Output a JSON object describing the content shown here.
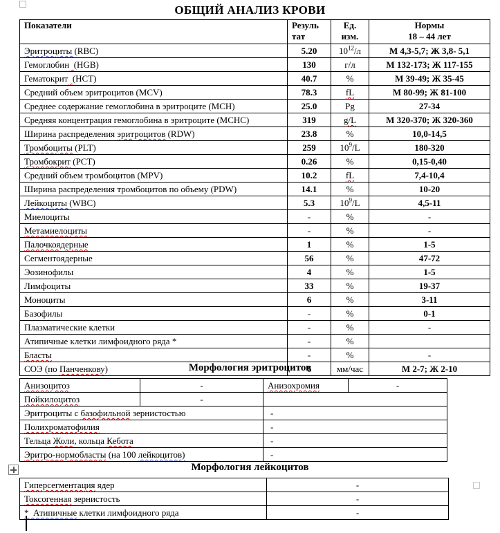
{
  "page": {
    "title": "ОБЩИЙ АНАЛИЗ КРОВИ",
    "section2_title": "Морфология эритроцитов",
    "section3_title": "Морфология лейкоцитов"
  },
  "colors": {
    "spellcheck_red": "#d40000",
    "grammar_blue": "#3b55c4",
    "text": "#000000",
    "border": "#000000"
  },
  "icons": {
    "top_left": "formatting-mark-square",
    "table_handle": "table-move-handle",
    "caret": "text-cursor",
    "bottom_right": "end-of-document-square"
  },
  "main_table": {
    "headers": {
      "indicators": "Показатели",
      "result_line1": "Резуль",
      "result_line2": "тат",
      "unit_line1": "Ед.",
      "unit_line2": "изм.",
      "norms_line1": "Нормы",
      "norms_line2": "18 – 44 лет"
    },
    "rows": [
      {
        "name": [
          {
            "t": "Эритроциты ",
            "u": "blue"
          },
          {
            "t": " (RBC)"
          }
        ],
        "result": "5.20",
        "unit": [
          {
            "t": "10"
          },
          {
            "t": "12",
            "sup": true
          },
          {
            "t": "/л"
          }
        ],
        "norm": "М 4,3-5,7; Ж 3,8- 5,1"
      },
      {
        "name": [
          {
            "t": "Гемоглобин"
          },
          {
            "t": "  ",
            "u": "red"
          },
          {
            "t": "(HGB)"
          }
        ],
        "result": "130",
        "unit": "г/л",
        "norm": "М 132-173; Ж 117-155"
      },
      {
        "name": [
          {
            "t": "Гематокрит"
          },
          {
            "t": "  ",
            "u": "red"
          },
          {
            "t": "(HCT)"
          }
        ],
        "result": "40.7",
        "unit": "%",
        "norm": "М 39-49; Ж 35-45"
      },
      {
        "name": "Средний объем эритроцитов (MCV)",
        "result": "78.3",
        "unit": [
          {
            "t": "fL",
            "u": "red"
          }
        ],
        "norm": "М 80-99; Ж 81-100"
      },
      {
        "name": "Среднее содержание гемоглобина в эритроците (MCH)",
        "result": "25.0",
        "unit": "Pg",
        "norm": "27-34"
      },
      {
        "name": "Средняя концентрация гемоглобина в эритроците (MCHC)",
        "result": "319",
        "unit": [
          {
            "t": "g/L",
            "u": "red"
          }
        ],
        "norm": "М 320-370; Ж 320-360"
      },
      {
        "name": [
          {
            "t": "Ширина распределения "
          },
          {
            "t": "эритроцитов",
            "u": "blue"
          },
          {
            "t": " (RDW)"
          }
        ],
        "result": "23.8",
        "unit": "%",
        "norm": "10,0-14,5"
      },
      {
        "name": [
          {
            "t": "Тромбоциты",
            "u": "red"
          },
          {
            "t": "  (PLT)"
          }
        ],
        "result": "259",
        "unit": [
          {
            "t": "10"
          },
          {
            "t": "9",
            "sup": true
          },
          {
            "t": "/L"
          }
        ],
        "norm": "180-320"
      },
      {
        "name": [
          {
            "t": "Тромбокрит",
            "u": "red"
          },
          {
            "t": "  (PCT)"
          }
        ],
        "result": "0.26",
        "unit": "%",
        "norm": "0,15-0,40"
      },
      {
        "name": "Средний объем тромбоцитов (MPV)",
        "result": "10.2",
        "unit": [
          {
            "t": "fL",
            "u": "red"
          }
        ],
        "norm": "7,4-10,4"
      },
      {
        "name": "Ширина распределения тромбоцитов по объему (PDW)",
        "result": "14.1",
        "unit": "%",
        "norm": "10-20"
      },
      {
        "name": [
          {
            "t": "Лейкоциты ",
            "u": "blue"
          },
          {
            "t": " (WBC)"
          }
        ],
        "result": "5.3",
        "unit": [
          {
            "t": "10"
          },
          {
            "t": "9",
            "sup": true
          },
          {
            "t": "/L"
          }
        ],
        "norm": "4,5-11"
      },
      {
        "name": "Миелоциты",
        "result": "-",
        "unit": "%",
        "norm": "-"
      },
      {
        "name": [
          {
            "t": "Метамиелоциты",
            "u": "red"
          }
        ],
        "result": "-",
        "unit": "%",
        "norm": "-"
      },
      {
        "name": [
          {
            "t": "Палочкоядерные",
            "u": "red"
          }
        ],
        "result": "1",
        "unit": "%",
        "norm": "1-5"
      },
      {
        "name": "Сегментоядерные",
        "result": "56",
        "unit": "%",
        "norm": "47-72"
      },
      {
        "name": "Эозинофилы",
        "result": "4",
        "unit": "%",
        "norm": "1-5"
      },
      {
        "name": "Лимфоциты",
        "result": "33",
        "unit": "%",
        "norm": "19-37"
      },
      {
        "name": "Моноциты",
        "result": "6",
        "unit": "%",
        "norm": "3-11"
      },
      {
        "name": "Базофилы",
        "result": "-",
        "unit": "%",
        "norm": "0-1"
      },
      {
        "name": "Плазматические клетки",
        "result": "-",
        "unit": "%",
        "norm": "-"
      },
      {
        "name": "Атипичные клетки лимфоидного ряда *",
        "result": "-",
        "unit": "%",
        "norm": ""
      },
      {
        "name": [
          {
            "t": "Бласты",
            "u": "red"
          }
        ],
        "result": "-",
        "unit": "%",
        "norm": "-"
      },
      {
        "name": [
          {
            "t": "СОЭ (по "
          },
          {
            "t": "Панченкову",
            "u": "red"
          },
          {
            "t": ")"
          }
        ],
        "result": "6",
        "unit": "мм/час",
        "norm": "М 2-7; Ж 2-10"
      }
    ]
  },
  "morphology_rbc": {
    "rows": [
      {
        "layout": "four",
        "cells": [
          [
            {
              "t": "Анизоцитоз",
              "u": "red"
            }
          ],
          "-",
          [
            {
              "t": "Анизохромия",
              "u": "red"
            }
          ],
          "-"
        ]
      },
      {
        "layout": "two",
        "cells": [
          [
            {
              "t": "Пойкилоцитоз",
              "u": "red"
            }
          ],
          "-",
          ""
        ]
      },
      {
        "layout": "merged",
        "cells": [
          [
            {
              "t": "Эритроциты с "
            },
            {
              "t": "базофильной",
              "u": "red"
            },
            {
              "t": " зернистостью"
            }
          ],
          "-"
        ]
      },
      {
        "layout": "merged",
        "cells": [
          [
            {
              "t": "Полихроматофилия",
              "u": "red"
            }
          ],
          "-"
        ]
      },
      {
        "layout": "merged",
        "cells": [
          [
            {
              "t": "Тельца "
            },
            {
              "t": "Жоли",
              "u": "red"
            },
            {
              "t": ", кольца "
            },
            {
              "t": "Кебота",
              "u": "red"
            }
          ],
          "-"
        ]
      },
      {
        "layout": "merged",
        "cells": [
          [
            {
              "t": "Эритро-нормобласты",
              "u": "red"
            },
            {
              "t": " (на 100 "
            },
            {
              "t": "лейкоцитов)",
              "u": "blue"
            }
          ],
          "-"
        ]
      }
    ]
  },
  "morphology_wbc": {
    "rows": [
      {
        "cells": [
          [
            {
              "t": "Гиперсегментация",
              "u": "red"
            },
            {
              "t": " ядер"
            }
          ],
          "-"
        ]
      },
      {
        "cells": [
          [
            {
              "t": "Токсогенная",
              "u": "red"
            },
            {
              "t": " зернистость"
            }
          ],
          "-"
        ]
      },
      {
        "cells": [
          [
            {
              "t": "*  Атипичные",
              "u": "blue"
            },
            {
              "t": " клетки лимфоидного ряда"
            }
          ],
          "-"
        ]
      }
    ]
  }
}
